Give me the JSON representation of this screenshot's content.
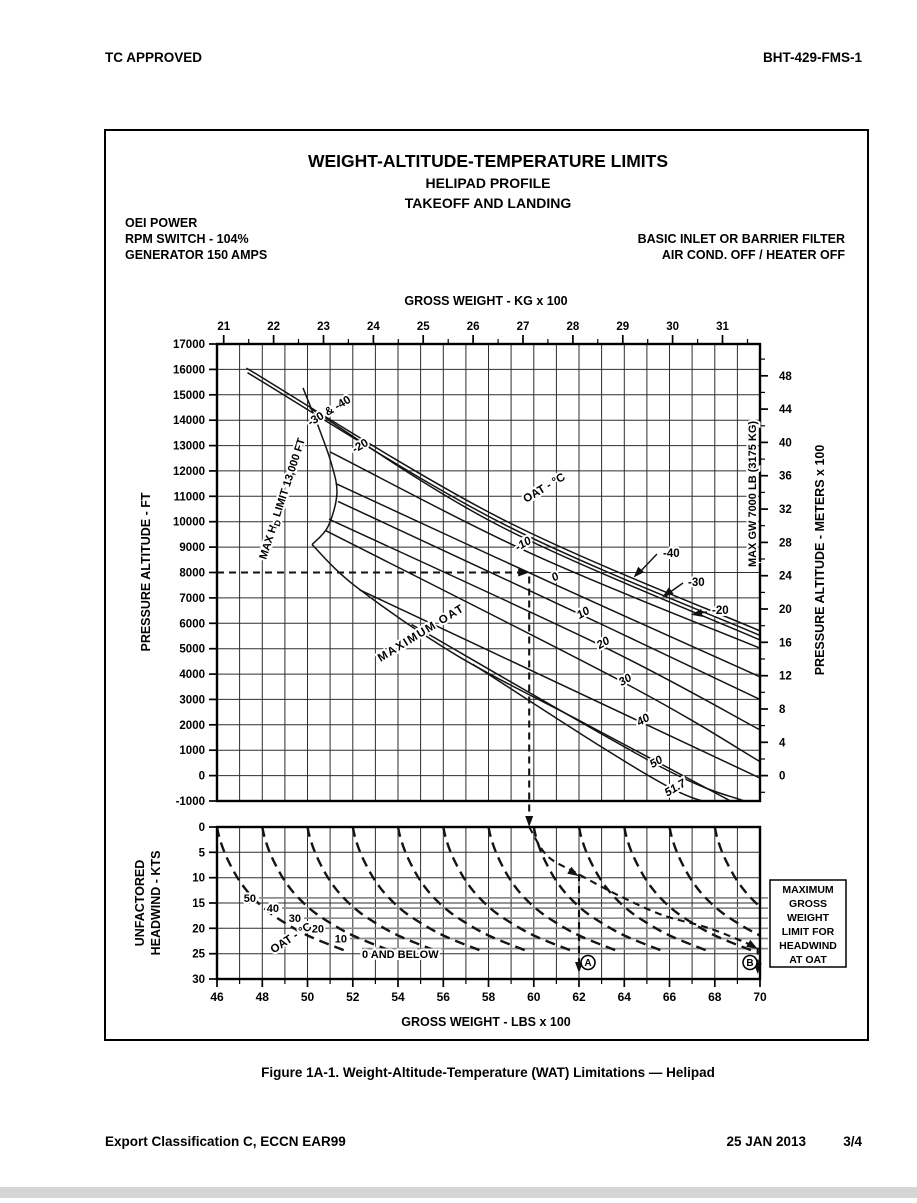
{
  "page": {
    "header_left": "TC APPROVED",
    "header_right": "BHT-429-FMS-1",
    "caption": "Figure 1A-1.   Weight-Altitude-Temperature (WAT) Limitations — Helipad",
    "footer_left": "Export Classification C, ECCN EAR99",
    "footer_date": "25 JAN 2013",
    "footer_page": "3/4"
  },
  "figure": {
    "title": "WEIGHT-ALTITUDE-TEMPERATURE LIMITS",
    "subtitle1": "HELIPAD PROFILE",
    "subtitle2": "TAKEOFF AND LANDING",
    "conditions_left": [
      "OEI POWER",
      "RPM SWITCH - 104%",
      "GENERATOR 150 AMPS"
    ],
    "conditions_right": [
      "BASIC INLET OR BARRIER FILTER",
      "AIR COND. OFF  /  HEATER OFF"
    ]
  },
  "colors": {
    "line": "#141414",
    "grid": "#2e2e2e",
    "limit_gray": "#8c8c8c",
    "strip": "#d5d5d5"
  },
  "chart_data": [
    {
      "type": "line",
      "title": "WAT limits - helipad takeoff and landing",
      "xlabel_top": "GROSS WEIGHT  -  KG x 100",
      "ylabel_left": "PRESSURE ALTITUDE  -  FT",
      "ylabel_right": "PRESSURE ALTITUDE  -  METERS x 100",
      "xlim_lbs": [
        46,
        70
      ],
      "ylim_ft": [
        -1000,
        17000
      ],
      "kg_ticks": [
        21,
        22,
        23,
        24,
        25,
        26,
        27,
        28,
        29,
        30,
        31
      ],
      "ft_ticks": [
        -1000,
        0,
        1000,
        2000,
        3000,
        4000,
        5000,
        6000,
        7000,
        8000,
        9000,
        10000,
        11000,
        12000,
        13000,
        14000,
        15000,
        16000,
        17000
      ],
      "m_ticks": [
        0,
        4,
        8,
        12,
        16,
        20,
        24,
        28,
        32,
        36,
        40,
        44,
        48
      ],
      "grid": "on",
      "series": [
        {
          "key": "-40",
          "oat_c": -40,
          "points": [
            [
              47.3,
              16050
            ],
            [
              58.5,
              10150
            ],
            [
              70,
              5700
            ]
          ]
        },
        {
          "key": "-30",
          "oat_c": -30,
          "points": [
            [
              47.35,
              15870
            ],
            [
              58.5,
              9980
            ],
            [
              70,
              5520
            ]
          ]
        },
        {
          "key": "-20",
          "oat_c": -20,
          "points": [
            [
              50.1,
              14480
            ],
            [
              58.5,
              9830
            ],
            [
              70,
              5340
            ]
          ]
        },
        {
          "key": "-10",
          "oat_c": -10,
          "points": [
            [
              51.0,
              12750
            ],
            [
              60,
              8700
            ],
            [
              70,
              5020
            ]
          ]
        },
        {
          "key": "0",
          "oat_c": 0,
          "points": [
            [
              51.25,
              11500
            ],
            [
              61,
              7500
            ],
            [
              70,
              3890
            ]
          ]
        },
        {
          "key": "10",
          "oat_c": 10,
          "points": [
            [
              51.35,
              10800
            ],
            [
              62.3,
              6250
            ],
            [
              70,
              3000
            ]
          ]
        },
        {
          "key": "20",
          "oat_c": 20,
          "points": [
            [
              50.95,
              10100
            ],
            [
              63.1,
              5070
            ],
            [
              70,
              1800
            ]
          ]
        },
        {
          "key": "30",
          "oat_c": 30,
          "points": [
            [
              50.8,
              9650
            ],
            [
              64.1,
              3610
            ],
            [
              70,
              550
            ]
          ]
        },
        {
          "key": "40",
          "oat_c": 40,
          "points": [
            [
              52.3,
              7320
            ],
            [
              64.9,
              2040
            ],
            [
              70,
              -100
            ]
          ]
        },
        {
          "key": "50",
          "oat_c": 50,
          "points": [
            [
              54.6,
              5950
            ],
            [
              65.5,
              400
            ],
            [
              69.3,
              -1000
            ]
          ]
        },
        {
          "key": "51.7",
          "oat_c": 51.7,
          "points": [
            [
              57.3,
              4390
            ],
            [
              66.3,
              -600
            ],
            [
              69.6,
              -1000
            ]
          ]
        },
        {
          "key": "max_hd",
          "points": [
            [
              49.8,
              15270
            ],
            [
              50.5,
              13700
            ],
            [
              51.05,
              12300
            ],
            [
              51.3,
              11100
            ],
            [
              50.9,
              9800
            ],
            [
              50.2,
              9100
            ]
          ]
        },
        {
          "key": "max_oat",
          "points": [
            [
              50.2,
              9100
            ],
            [
              52.2,
              7400
            ],
            [
              56.7,
              4680
            ],
            [
              62.2,
              2080
            ],
            [
              68.7,
              -1000
            ]
          ]
        }
      ],
      "annotations": {
        "bundle_label": "-30 & -40",
        "minus20_label": "-20",
        "oat_label": "OAT - °C",
        "max_oat_label": "MAXIMUM OAT",
        "max_hd_label": {
          "pre": "MAX H",
          "sub": "D",
          "post": " LIMIT 13,000 FT"
        },
        "max_gw_label": "MAX GW 7000 LB (3175 KG)",
        "callouts": [
          "-40",
          "-30",
          "-20"
        ]
      },
      "example": {
        "pressure_alt_ft": 8000,
        "gw_lbs_x100": 59.8
      }
    },
    {
      "type": "line",
      "title": "Headwind benefit",
      "xlabel": "GROSS WEIGHT  -  LBS x 100",
      "ylabel_line1": "UNFACTORED",
      "ylabel_line2": "HEADWIND  -  KTS",
      "xlim_lbs": [
        46,
        70
      ],
      "ylim_kts": [
        0,
        30
      ],
      "x_ticks": [
        46,
        48,
        50,
        52,
        54,
        56,
        58,
        60,
        62,
        64,
        66,
        68,
        70
      ],
      "y_ticks": [
        0,
        5,
        10,
        15,
        20,
        25,
        30
      ],
      "curve_start_gw": [
        46,
        48,
        50,
        52,
        54,
        56,
        58,
        60,
        62,
        64,
        66,
        68
      ],
      "curve_profile": {
        "kts": [
          0,
          2,
          5,
          8,
          11,
          14,
          17,
          20,
          22,
          24.3
        ],
        "gw_offset": [
          0,
          0.1,
          0.33,
          0.65,
          1.05,
          1.6,
          2.35,
          3.4,
          4.3,
          5.6
        ]
      },
      "oat_label": "OAT - °C",
      "limit_lines": [
        {
          "oat": "50",
          "kts": 14
        },
        {
          "oat": "40",
          "kts": 16
        },
        {
          "oat": "30",
          "kts": 18
        },
        {
          "oat": "20",
          "kts": 20
        },
        {
          "oat": "10",
          "kts": 22
        },
        {
          "oat": "0 AND BELOW",
          "kts": 24
        }
      ],
      "example_path": [
        [
          59.8,
          0
        ],
        [
          60.6,
          5.7
        ],
        [
          61.9,
          9.1
        ],
        [
          63.7,
          13.4
        ],
        [
          65.7,
          17.4
        ],
        [
          67.7,
          19.9
        ],
        [
          69.4,
          22.9
        ],
        [
          69.7,
          23.7
        ]
      ],
      "markers": [
        {
          "label": "A",
          "gw": 62
        },
        {
          "label": "B",
          "gw": 70
        }
      ],
      "side_box": {
        "lines": [
          "MAXIMUM",
          "GROSS",
          "WEIGHT",
          "LIMIT FOR",
          "HEADWIND",
          "AT OAT"
        ]
      }
    }
  ]
}
